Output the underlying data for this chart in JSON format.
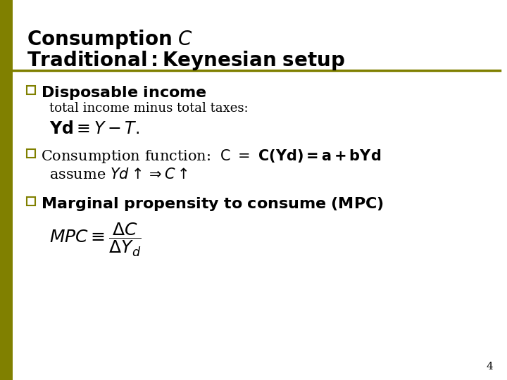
{
  "bg_color": "#ffffff",
  "separator_color": "#808000",
  "left_bar_color": "#808000",
  "bullet_color": "#808000",
  "slide_number": "4",
  "text_color": "#000000",
  "title_fontsize": 20,
  "body_fontsize": 15,
  "small_fontsize": 13,
  "math_fontsize": 15
}
